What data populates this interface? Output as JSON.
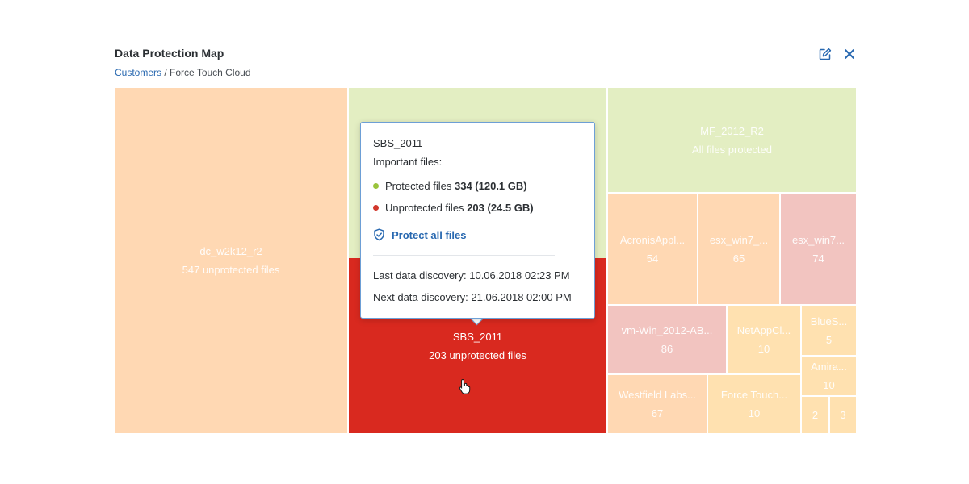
{
  "header": {
    "title": "Data Protection Map",
    "breadcrumb_link": "Customers",
    "breadcrumb_separator": " / ",
    "breadcrumb_current": "Force Touch Cloud",
    "edit_icon": "edit-icon",
    "close_icon": "close-icon"
  },
  "colors": {
    "unprotected_many": "#d9291f",
    "protected": "#e3eec2",
    "warning": "#ffd8b3",
    "accent": "#2868b0",
    "dot_green": "#9ac43c",
    "dot_red": "#d2372c"
  },
  "treemap": {
    "tiles": [
      {
        "name": "dc_w2k12_r2",
        "value": "547 unprotected files"
      },
      {
        "name": "",
        "value": ""
      },
      {
        "name": "SBS_2011",
        "value": "203 unprotected files"
      },
      {
        "name": "MF_2012_R2",
        "value": "All files protected"
      },
      {
        "name": "AcronisAppl...",
        "value": "54"
      },
      {
        "name": "esx_win7_...",
        "value": "65"
      },
      {
        "name": "esx_win7...",
        "value": "74"
      },
      {
        "name": "vm-Win_2012-AB...",
        "value": "86"
      },
      {
        "name": "NetAppCl...",
        "value": "10"
      },
      {
        "name": "BlueS...",
        "value": "5"
      },
      {
        "name": "Amira...",
        "value": "10"
      },
      {
        "name": "Westfield Labs...",
        "value": "67"
      },
      {
        "name": "Force Touch...",
        "value": "10"
      },
      {
        "name": "",
        "value": "2"
      },
      {
        "name": "",
        "value": "3"
      }
    ]
  },
  "tooltip": {
    "title": "SBS_2011",
    "subtitle": "Important files:",
    "protected_label": "Protected files",
    "protected_value": "334 (120.1 GB)",
    "unprotected_label": "Unprotected files",
    "unprotected_value": "203 (24.5 GB)",
    "action_label": "Protect all files",
    "last_discovery": "Last data discovery: 10.06.2018 02:23 PM",
    "next_discovery": "Next data discovery: 21.06.2018 02:00 PM"
  }
}
